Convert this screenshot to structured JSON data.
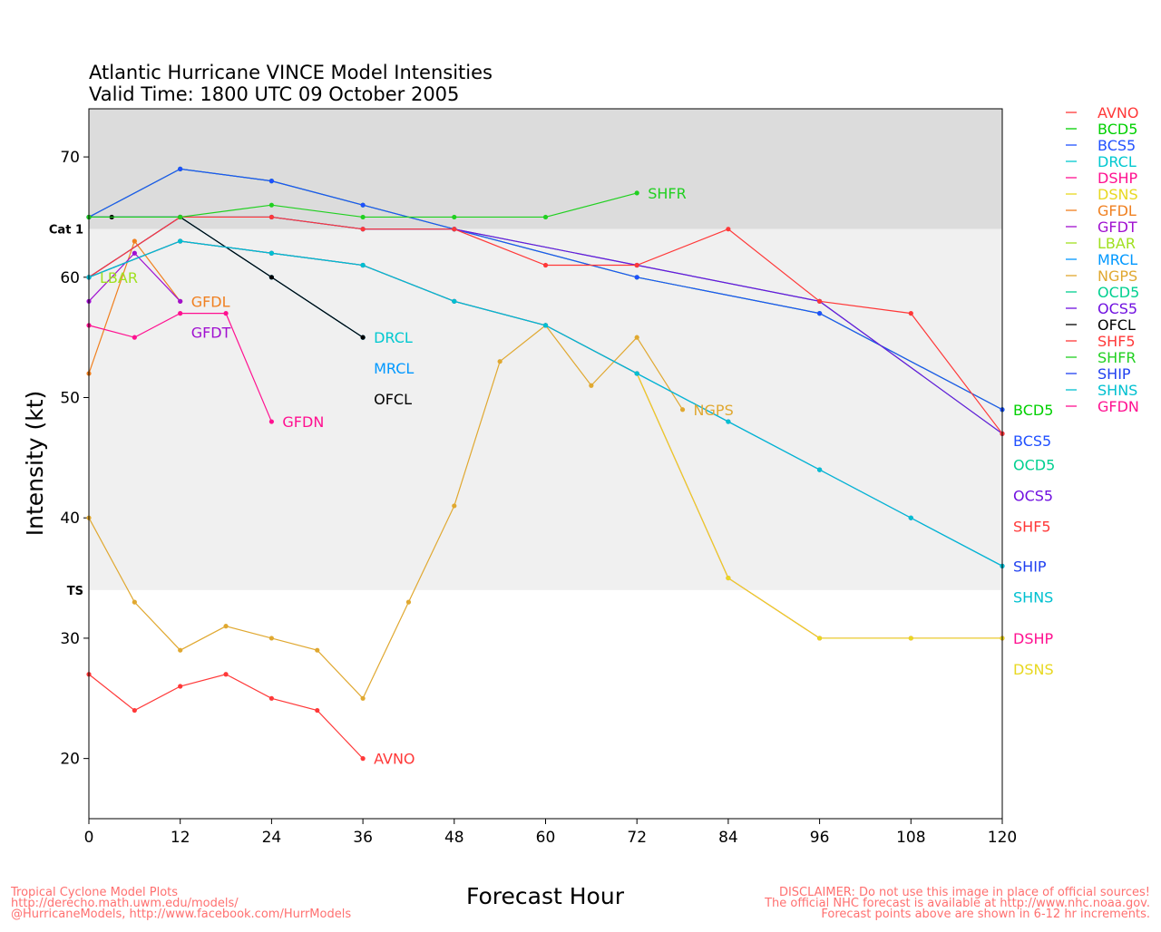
{
  "chart_data": {
    "type": "line",
    "title": "Atlantic Hurricane VINCE Model Intensities",
    "subtitle": "Valid Time: 1800 UTC 09 October 2005",
    "xlabel": "Forecast Hour",
    "ylabel": "Intensity (kt)",
    "xlim": [
      0,
      120
    ],
    "ylim": [
      15,
      74
    ],
    "xticks": [
      0,
      12,
      24,
      36,
      48,
      60,
      72,
      84,
      96,
      108,
      120
    ],
    "yticks": [
      20,
      30,
      40,
      50,
      60,
      70
    ],
    "grid": false,
    "legend_position": "right",
    "bands": [
      {
        "label": "Cat 1",
        "from": 64,
        "to": 74,
        "color": "#dcdcdc"
      },
      {
        "label": "TS",
        "from": 34,
        "to": 64,
        "color": "#f0f0f0"
      }
    ],
    "series": [
      {
        "name": "AVNO",
        "color": "#ff3838",
        "points": [
          [
            0,
            27
          ],
          [
            6,
            24
          ],
          [
            12,
            26
          ],
          [
            18,
            27
          ],
          [
            24,
            25
          ],
          [
            30,
            24
          ],
          [
            36,
            20
          ]
        ]
      },
      {
        "name": "BCD5",
        "color": "#00d000",
        "points": [
          [
            0,
            65
          ],
          [
            12,
            69
          ],
          [
            24,
            68
          ],
          [
            36,
            66
          ],
          [
            48,
            64
          ],
          [
            72,
            60
          ],
          [
            96,
            57
          ],
          [
            120,
            49
          ]
        ]
      },
      {
        "name": "BCS5",
        "color": "#2050ff",
        "points": [
          [
            0,
            65
          ],
          [
            12,
            69
          ],
          [
            24,
            68
          ],
          [
            36,
            66
          ],
          [
            48,
            64
          ],
          [
            72,
            60
          ],
          [
            96,
            57
          ],
          [
            120,
            49
          ]
        ]
      },
      {
        "name": "DRCL",
        "color": "#00c8d0",
        "points": [
          [
            0,
            65
          ],
          [
            12,
            65
          ],
          [
            24,
            60
          ],
          [
            36,
            55
          ]
        ]
      },
      {
        "name": "DSHP",
        "color": "#ff1090",
        "points": [
          [
            0,
            60
          ],
          [
            12,
            63
          ],
          [
            24,
            62
          ],
          [
            36,
            61
          ],
          [
            48,
            58
          ],
          [
            60,
            56
          ],
          [
            72,
            52
          ],
          [
            84,
            35
          ],
          [
            96,
            30
          ],
          [
            108,
            30
          ],
          [
            120,
            30
          ]
        ]
      },
      {
        "name": "DSNS",
        "color": "#e8d820",
        "points": [
          [
            0,
            60
          ],
          [
            12,
            63
          ],
          [
            24,
            62
          ],
          [
            36,
            61
          ],
          [
            48,
            58
          ],
          [
            60,
            56
          ],
          [
            72,
            52
          ],
          [
            84,
            35
          ],
          [
            96,
            30
          ],
          [
            108,
            30
          ],
          [
            120,
            30
          ]
        ]
      },
      {
        "name": "GFDL",
        "color": "#f08020",
        "points": [
          [
            0,
            52
          ],
          [
            6,
            63
          ],
          [
            12,
            58
          ]
        ]
      },
      {
        "name": "GFDT",
        "color": "#a010d0",
        "points": [
          [
            0,
            58
          ],
          [
            6,
            62
          ],
          [
            12,
            58
          ]
        ]
      },
      {
        "name": "LBAR",
        "color": "#a0e020",
        "points": [
          [
            0,
            60
          ]
        ]
      },
      {
        "name": "MRCL",
        "color": "#0098ff",
        "points": [
          [
            0,
            65
          ],
          [
            12,
            65
          ],
          [
            24,
            60
          ],
          [
            36,
            55
          ]
        ]
      },
      {
        "name": "NGPS",
        "color": "#e0a830",
        "points": [
          [
            0,
            40
          ],
          [
            6,
            33
          ],
          [
            12,
            29
          ],
          [
            18,
            31
          ],
          [
            24,
            30
          ],
          [
            30,
            29
          ],
          [
            36,
            25
          ],
          [
            42,
            33
          ],
          [
            48,
            41
          ],
          [
            54,
            53
          ],
          [
            60,
            56
          ],
          [
            66,
            51
          ],
          [
            72,
            55
          ],
          [
            78,
            49
          ]
        ]
      },
      {
        "name": "OCD5",
        "color": "#00d090",
        "points": [
          [
            0,
            60
          ],
          [
            12,
            65
          ],
          [
            24,
            65
          ],
          [
            36,
            64
          ],
          [
            48,
            64
          ],
          [
            72,
            61
          ],
          [
            96,
            58
          ],
          [
            120,
            47
          ]
        ]
      },
      {
        "name": "OCS5",
        "color": "#7010e0",
        "points": [
          [
            0,
            60
          ],
          [
            12,
            65
          ],
          [
            24,
            65
          ],
          [
            36,
            64
          ],
          [
            48,
            64
          ],
          [
            72,
            61
          ],
          [
            96,
            58
          ],
          [
            120,
            47
          ]
        ]
      },
      {
        "name": "OFCL",
        "color": "#000000",
        "points": [
          [
            0,
            65
          ],
          [
            3,
            65
          ],
          [
            12,
            65
          ],
          [
            24,
            60
          ],
          [
            36,
            55
          ]
        ]
      },
      {
        "name": "SHF5",
        "color": "#ff3838",
        "points": [
          [
            0,
            60
          ],
          [
            12,
            65
          ],
          [
            24,
            65
          ],
          [
            36,
            64
          ],
          [
            48,
            64
          ],
          [
            60,
            61
          ],
          [
            72,
            61
          ],
          [
            84,
            64
          ],
          [
            96,
            58
          ],
          [
            108,
            57
          ],
          [
            120,
            47
          ]
        ]
      },
      {
        "name": "SHFR",
        "color": "#20d020",
        "points": [
          [
            0,
            65
          ],
          [
            12,
            65
          ],
          [
            24,
            66
          ],
          [
            36,
            65
          ],
          [
            48,
            65
          ],
          [
            60,
            65
          ],
          [
            72,
            67
          ]
        ]
      },
      {
        "name": "SHIP",
        "color": "#2040f0",
        "points": [
          [
            0,
            60
          ],
          [
            12,
            63
          ],
          [
            24,
            62
          ],
          [
            36,
            61
          ],
          [
            48,
            58
          ],
          [
            60,
            56
          ],
          [
            72,
            52
          ],
          [
            84,
            48
          ],
          [
            96,
            44
          ],
          [
            108,
            40
          ],
          [
            120,
            36
          ]
        ]
      },
      {
        "name": "SHNS",
        "color": "#00c0d0",
        "points": [
          [
            0,
            60
          ],
          [
            12,
            63
          ],
          [
            24,
            62
          ],
          [
            36,
            61
          ],
          [
            48,
            58
          ],
          [
            60,
            56
          ],
          [
            72,
            52
          ],
          [
            84,
            48
          ],
          [
            96,
            44
          ],
          [
            108,
            40
          ],
          [
            120,
            36
          ]
        ]
      },
      {
        "name": "GFDN",
        "color": "#ff1090",
        "points": [
          [
            0,
            56
          ],
          [
            6,
            55
          ],
          [
            12,
            57
          ],
          [
            18,
            57
          ],
          [
            24,
            48
          ]
        ]
      }
    ]
  },
  "footer": {
    "left": [
      "Tropical Cyclone Model Plots",
      "http://derecho.math.uwm.edu/models/",
      "@HurricaneModels, http://www.facebook.com/HurrModels"
    ],
    "right": [
      "DISCLAIMER: Do not use this image in place of official sources!",
      "The official NHC forecast is available at http://www.nhc.noaa.gov.",
      "Forecast points above are shown in 6-12 hr increments."
    ],
    "color": "#ff7070"
  }
}
